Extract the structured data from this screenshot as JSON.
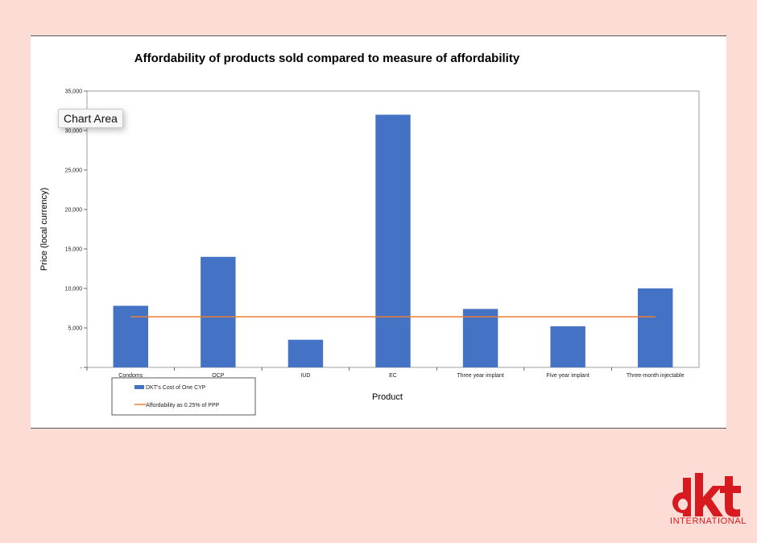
{
  "chart_data": {
    "type": "bar",
    "title": "Affordability of products sold compared to measure of affordability",
    "xlabel": "Product",
    "ylabel": "Price (local currency)",
    "ylim": [
      0,
      35000
    ],
    "yticks": [
      0,
      5000,
      10000,
      15000,
      20000,
      25000,
      30000,
      35000
    ],
    "ytick_labels": [
      "-",
      "5,000",
      "10,000",
      "15,000",
      "20,000",
      "25,000",
      "30,000",
      "35,000"
    ],
    "categories": [
      "Condoms",
      "OCP",
      "IUD",
      "EC",
      "Three year implant",
      "Five year implant",
      "Three-month injectable"
    ],
    "series": [
      {
        "name": "DKT's Cost of One CYP",
        "kind": "bar",
        "color": "#4472c4",
        "values": [
          7800,
          14000,
          3500,
          32000,
          7400,
          5200,
          10000
        ]
      },
      {
        "name": "Affordability as 0.25% of PPP",
        "kind": "line",
        "color": "#ed7d31",
        "values": [
          6400,
          6400,
          6400,
          6400,
          6400,
          6400,
          6400
        ]
      }
    ],
    "grid": false,
    "legend_position": "bottom-left"
  },
  "tooltip": {
    "text": "Chart Area"
  },
  "logo": {
    "text": "INTERNATIONAL",
    "color": "#d71920"
  }
}
